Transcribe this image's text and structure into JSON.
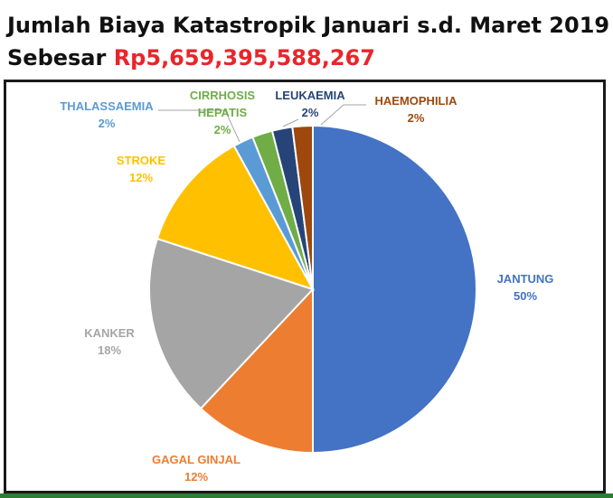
{
  "header": {
    "title_line1": "Jumlah Biaya Katastropik Januari s.d. Maret 2019",
    "title_prefix": "Sebesar ",
    "title_amount": "Rp5,659,395,588,267"
  },
  "colors": {
    "amount": "#e8262a",
    "frame": "#1a1a1a"
  },
  "chart_data": {
    "type": "pie",
    "title": "Jumlah Biaya Katastropik Januari s.d. Maret 2019",
    "slices": [
      {
        "name": "JANTUNG",
        "label": [
          "JANTUNG"
        ],
        "pct_text": "50%",
        "value": 50,
        "color": "#4472c4"
      },
      {
        "name": "GAGAL GINJAL",
        "label": [
          "GAGAL GINJAL"
        ],
        "pct_text": "12%",
        "value": 12,
        "color": "#ed7d31"
      },
      {
        "name": "KANKER",
        "label": [
          "KANKER"
        ],
        "pct_text": "18%",
        "value": 18,
        "color": "#a5a5a5"
      },
      {
        "name": "STROKE",
        "label": [
          "STROKE"
        ],
        "pct_text": "12%",
        "value": 12,
        "color": "#ffc000"
      },
      {
        "name": "THALASSAEMIA",
        "label": [
          "THALASSAEMIA"
        ],
        "pct_text": "2%",
        "value": 2,
        "color": "#5b9bd5"
      },
      {
        "name": "CIRRHOSIS HEPATIS",
        "label": [
          "CIRRHOSIS",
          "HEPATIS"
        ],
        "pct_text": "2%",
        "value": 2,
        "color": "#70ad47"
      },
      {
        "name": "LEUKAEMIA",
        "label": [
          "LEUKAEMIA"
        ],
        "pct_text": "2%",
        "value": 2,
        "color": "#264478"
      },
      {
        "name": "HAEMOPHILIA",
        "label": [
          "HAEMOPHILIA"
        ],
        "pct_text": "2%",
        "value": 2,
        "color": "#9e480e"
      }
    ],
    "start_angle": "12 o'clock",
    "direction": "clockwise",
    "legend": "none"
  }
}
